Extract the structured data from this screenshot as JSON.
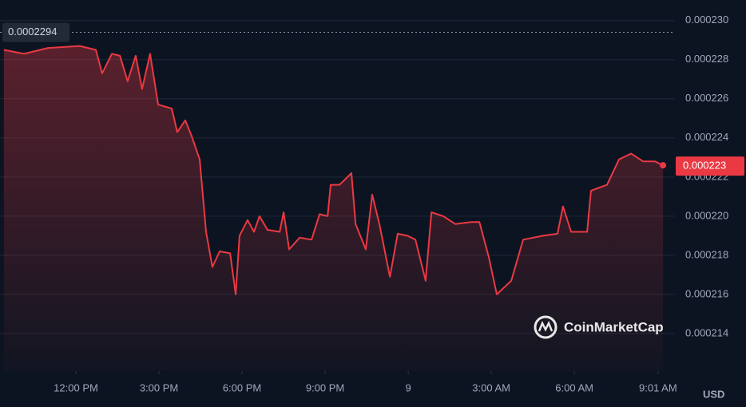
{
  "chart_data": {
    "type": "line",
    "x": [
      -2.6,
      -1.87,
      -1.01,
      0.14,
      0.72,
      0.95,
      1.3,
      1.59,
      1.87,
      2.16,
      2.39,
      2.68,
      2.97,
      3.46,
      3.66,
      3.95,
      4.18,
      4.47,
      4.7,
      4.93,
      5.19,
      5.57,
      5.77,
      5.91,
      6.2,
      6.43,
      6.63,
      6.92,
      7.36,
      7.5,
      7.7,
      8.08,
      8.51,
      8.8,
      9.09,
      9.2,
      9.52,
      9.95,
      10.1,
      10.47,
      10.7,
      10.96,
      11.34,
      11.62,
      11.97,
      12.26,
      12.63,
      12.84,
      13.27,
      13.7,
      14.28,
      14.57,
      14.91,
      15.2,
      15.72,
      16.15,
      16.87,
      17.39,
      17.59,
      17.88,
      18.46,
      18.6,
      19.18,
      19.61,
      20.05,
      20.48,
      20.91,
      21.2
    ],
    "series": [
      {
        "color": "#ea3943",
        "values": [
          0.0002285,
          0.0002283,
          0.0002286,
          0.0002287,
          0.0002285,
          0.0002273,
          0.0002283,
          0.0002282,
          0.0002269,
          0.0002282,
          0.0002265,
          0.0002283,
          0.0002257,
          0.0002255,
          0.0002243,
          0.0002249,
          0.0002241,
          0.0002229,
          0.0002192,
          0.0002174,
          0.0002182,
          0.0002181,
          0.000216,
          0.000219,
          0.0002198,
          0.0002192,
          0.00022,
          0.0002193,
          0.0002192,
          0.0002202,
          0.0002183,
          0.0002189,
          0.0002188,
          0.0002201,
          0.00022,
          0.0002216,
          0.0002216,
          0.0002222,
          0.0002196,
          0.0002183,
          0.0002211,
          0.0002196,
          0.0002169,
          0.0002191,
          0.000219,
          0.0002188,
          0.0002167,
          0.0002202,
          0.00022,
          0.0002196,
          0.0002197,
          0.0002197,
          0.0002179,
          0.000216,
          0.0002167,
          0.0002188,
          0.000219,
          0.0002191,
          0.0002205,
          0.0002192,
          0.0002192,
          0.0002213,
          0.0002216,
          0.0002229,
          0.0002232,
          0.0002228,
          0.0002228,
          0.0002226
        ]
      }
    ],
    "xlim": [
      -2.74,
      21.63
    ],
    "xticks": [
      {
        "value": 0,
        "label": "12:00 PM"
      },
      {
        "value": 3,
        "label": "3:00 PM"
      },
      {
        "value": 6,
        "label": "6:00 PM"
      },
      {
        "value": 9,
        "label": "9:00 PM"
      },
      {
        "value": 12,
        "label": "9"
      },
      {
        "value": 15,
        "label": "3:00 AM"
      },
      {
        "value": 18,
        "label": "6:00 AM"
      },
      {
        "value": 21.02,
        "label": "9:01 AM"
      }
    ],
    "ylim": [
      0.00021208,
      0.00023105
    ],
    "yticks": [
      0.000214,
      0.000216,
      0.000218,
      {
        "value": 0.00022,
        "label": "0.000220"
      },
      0.000222,
      0.000224,
      0.000226,
      0.000228,
      {
        "value": 0.00023,
        "label": "0.000230"
      }
    ],
    "grid": true,
    "max_price": 0.0002294,
    "current_price": {
      "value": 0.0002226,
      "label": "0.000223"
    },
    "currency": "USD",
    "watermark": "CoinMarketCap"
  }
}
